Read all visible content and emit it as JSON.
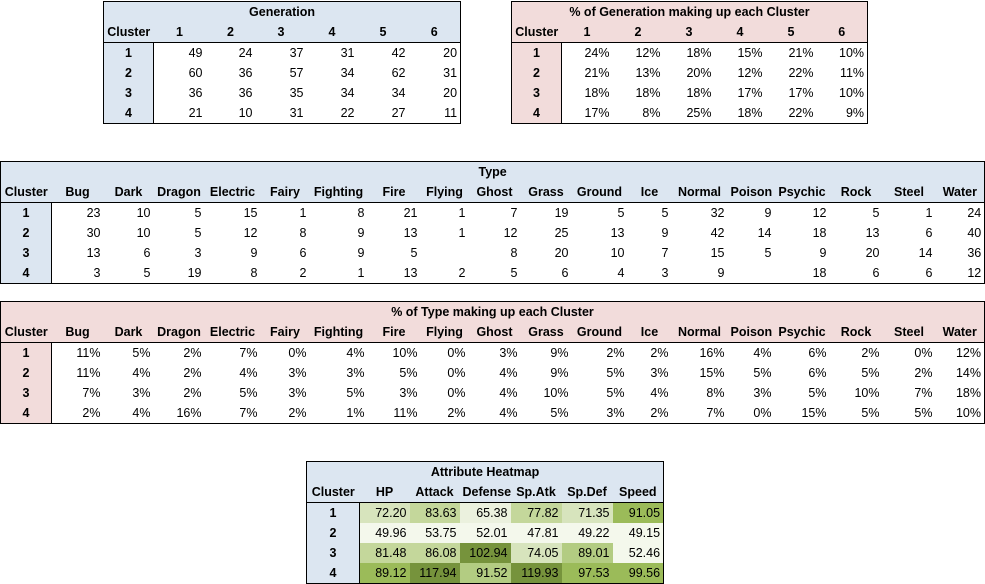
{
  "generation_table": {
    "title": "Generation",
    "corner": "Cluster",
    "columns": [
      "1",
      "2",
      "3",
      "4",
      "5",
      "6"
    ],
    "rows": [
      {
        "cluster": "1",
        "values": [
          "49",
          "24",
          "37",
          "31",
          "42",
          "20"
        ]
      },
      {
        "cluster": "2",
        "values": [
          "60",
          "36",
          "57",
          "34",
          "62",
          "31"
        ]
      },
      {
        "cluster": "3",
        "values": [
          "36",
          "36",
          "35",
          "34",
          "34",
          "20"
        ]
      },
      {
        "cluster": "4",
        "values": [
          "21",
          "10",
          "31",
          "22",
          "27",
          "11"
        ]
      }
    ]
  },
  "generation_pct_table": {
    "title": "% of Generation making up each Cluster",
    "corner": "Cluster",
    "columns": [
      "1",
      "2",
      "3",
      "4",
      "5",
      "6"
    ],
    "rows": [
      {
        "cluster": "1",
        "values": [
          "24%",
          "12%",
          "18%",
          "15%",
          "21%",
          "10%"
        ]
      },
      {
        "cluster": "2",
        "values": [
          "21%",
          "13%",
          "20%",
          "12%",
          "22%",
          "11%"
        ]
      },
      {
        "cluster": "3",
        "values": [
          "18%",
          "18%",
          "18%",
          "17%",
          "17%",
          "10%"
        ]
      },
      {
        "cluster": "4",
        "values": [
          "17%",
          "8%",
          "25%",
          "18%",
          "22%",
          "9%"
        ]
      }
    ]
  },
  "type_table": {
    "title": "Type",
    "corner": "Cluster",
    "columns": [
      "Bug",
      "Dark",
      "Dragon",
      "Electric",
      "Fairy",
      "Fighting",
      "Fire",
      "Flying",
      "Ghost",
      "Grass",
      "Ground",
      "Ice",
      "Normal",
      "Poison",
      "Psychic",
      "Rock",
      "Steel",
      "Water"
    ],
    "rows": [
      {
        "cluster": "1",
        "values": [
          "23",
          "10",
          "5",
          "15",
          "1",
          "8",
          "21",
          "1",
          "7",
          "19",
          "5",
          "5",
          "32",
          "9",
          "12",
          "5",
          "1",
          "24"
        ]
      },
      {
        "cluster": "2",
        "values": [
          "30",
          "10",
          "5",
          "12",
          "8",
          "9",
          "13",
          "1",
          "12",
          "25",
          "13",
          "9",
          "42",
          "14",
          "18",
          "13",
          "6",
          "40"
        ]
      },
      {
        "cluster": "3",
        "values": [
          "13",
          "6",
          "3",
          "9",
          "6",
          "9",
          "5",
          "",
          "8",
          "20",
          "10",
          "7",
          "15",
          "5",
          "9",
          "20",
          "14",
          "36"
        ]
      },
      {
        "cluster": "4",
        "values": [
          "3",
          "5",
          "19",
          "8",
          "2",
          "1",
          "13",
          "2",
          "5",
          "6",
          "4",
          "3",
          "9",
          "",
          "18",
          "6",
          "6",
          "12"
        ]
      }
    ]
  },
  "type_pct_table": {
    "title": "% of Type making up each Cluster",
    "corner": "Cluster",
    "columns": [
      "Bug",
      "Dark",
      "Dragon",
      "Electric",
      "Fairy",
      "Fighting",
      "Fire",
      "Flying",
      "Ghost",
      "Grass",
      "Ground",
      "Ice",
      "Normal",
      "Poison",
      "Psychic",
      "Rock",
      "Steel",
      "Water"
    ],
    "rows": [
      {
        "cluster": "1",
        "values": [
          "11%",
          "5%",
          "2%",
          "7%",
          "0%",
          "4%",
          "10%",
          "0%",
          "3%",
          "9%",
          "2%",
          "2%",
          "16%",
          "4%",
          "6%",
          "2%",
          "0%",
          "12%"
        ]
      },
      {
        "cluster": "2",
        "values": [
          "11%",
          "4%",
          "2%",
          "4%",
          "3%",
          "3%",
          "5%",
          "0%",
          "4%",
          "9%",
          "5%",
          "3%",
          "15%",
          "5%",
          "6%",
          "5%",
          "2%",
          "14%"
        ]
      },
      {
        "cluster": "3",
        "values": [
          "7%",
          "3%",
          "2%",
          "5%",
          "3%",
          "5%",
          "3%",
          "0%",
          "4%",
          "10%",
          "5%",
          "4%",
          "8%",
          "3%",
          "5%",
          "10%",
          "7%",
          "18%"
        ]
      },
      {
        "cluster": "4",
        "values": [
          "2%",
          "4%",
          "16%",
          "7%",
          "2%",
          "1%",
          "11%",
          "2%",
          "4%",
          "5%",
          "3%",
          "2%",
          "7%",
          "0%",
          "15%",
          "5%",
          "5%",
          "10%"
        ]
      }
    ]
  },
  "attribute_table": {
    "title": "Attribute Heatmap",
    "corner": "Cluster",
    "columns": [
      "HP",
      "Attack",
      "Defense",
      "Sp.Atk",
      "Sp.Def",
      "Speed"
    ],
    "rows": [
      {
        "cluster": "1",
        "values": [
          "72.20",
          "83.63",
          "65.38",
          "77.82",
          "71.35",
          "91.05"
        ],
        "shades": [
          "#d7e4bd",
          "#c4d79b",
          "#ebf1de",
          "#c4d79b",
          "#d7e4bd",
          "#9bbb59"
        ]
      },
      {
        "cluster": "2",
        "values": [
          "49.96",
          "53.75",
          "52.01",
          "47.81",
          "49.22",
          "49.15"
        ],
        "shades": [
          "#f4f8ec",
          "#f4f8ec",
          "#f4f8ec",
          "#f4f8ec",
          "#f4f8ec",
          "#f4f8ec"
        ]
      },
      {
        "cluster": "3",
        "values": [
          "81.48",
          "86.08",
          "102.94",
          "74.05",
          "89.01",
          "52.46"
        ],
        "shades": [
          "#c4d79b",
          "#c4d79b",
          "#76933c",
          "#d7e4bd",
          "#b3cc82",
          "#f4f8ec"
        ]
      },
      {
        "cluster": "4",
        "values": [
          "89.12",
          "117.94",
          "91.52",
          "119.93",
          "97.53",
          "99.56"
        ],
        "shades": [
          "#9bbb59",
          "#76933c",
          "#b3cc82",
          "#76933c",
          "#9bbb59",
          "#9bbb59"
        ]
      }
    ]
  }
}
